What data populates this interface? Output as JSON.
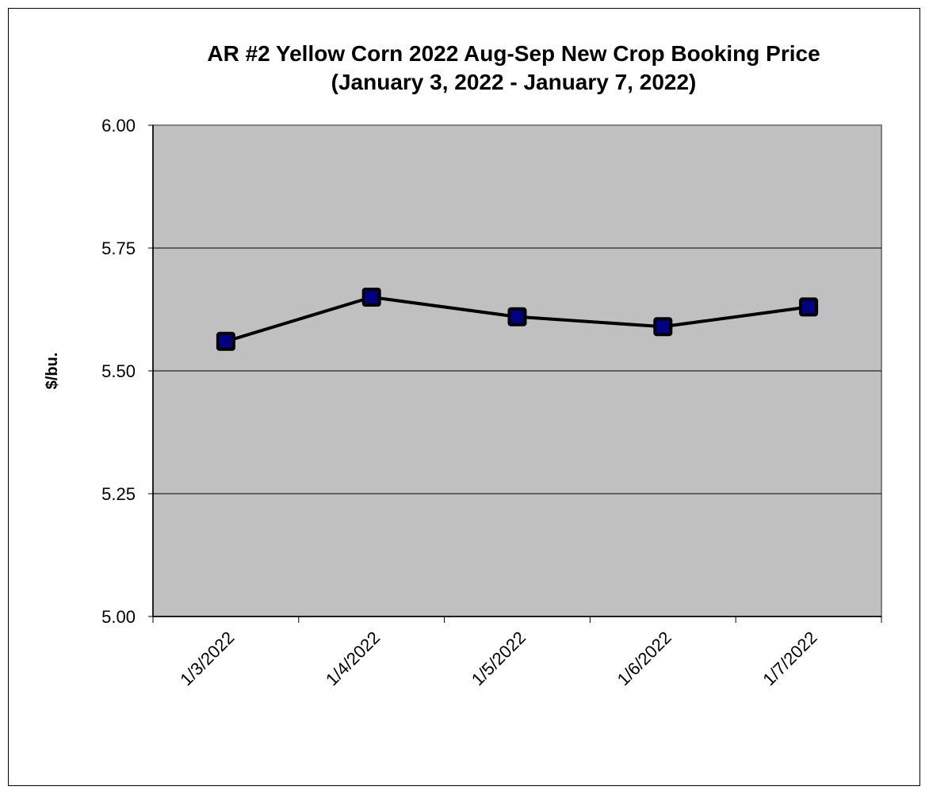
{
  "chart_data": {
    "type": "line",
    "title": "AR #2 Yellow Corn 2022 Aug-Sep New Crop Booking Price",
    "subtitle": "(January 3, 2022 - January 7, 2022)",
    "xlabel": "",
    "ylabel": "$/bu.",
    "categories": [
      "1/3/2022",
      "1/4/2022",
      "1/5/2022",
      "1/6/2022",
      "1/7/2022"
    ],
    "values": [
      5.56,
      5.65,
      5.61,
      5.59,
      5.63
    ],
    "ylim": [
      5.0,
      6.0
    ],
    "yticks": [
      "5.00",
      "5.25",
      "5.50",
      "5.75",
      "6.00"
    ],
    "grid": true,
    "legend": "none",
    "colors": {
      "plot_bg": "#c0c0c0",
      "line": "#000000",
      "marker": "#000080"
    }
  }
}
